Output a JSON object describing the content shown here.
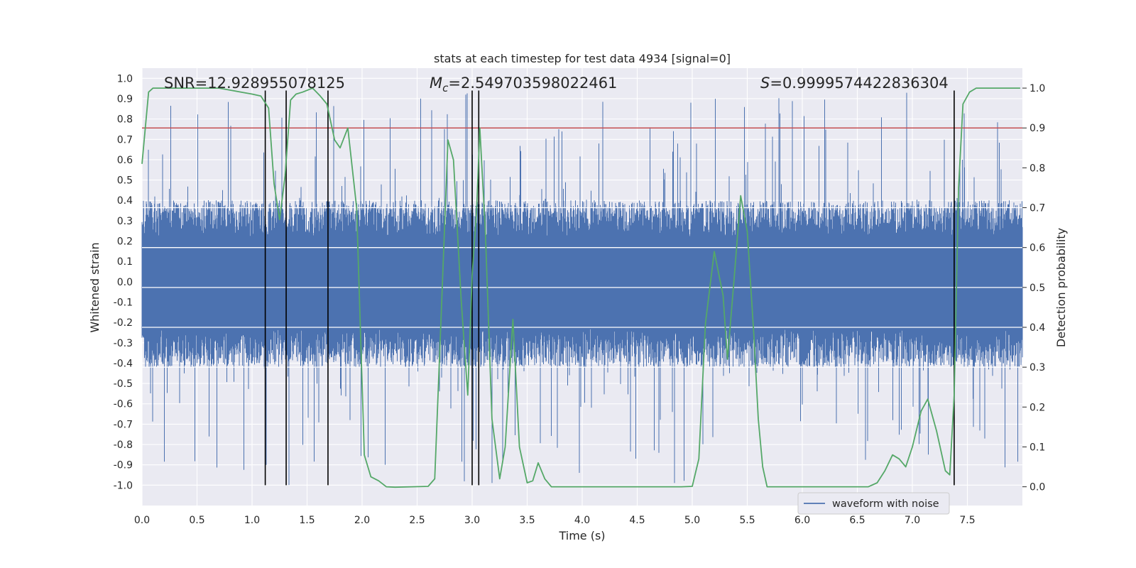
{
  "chart_data": {
    "type": "line",
    "title": "stats at each timestep for test data 4934 [signal=0]",
    "xlabel": "Time (s)",
    "ylabel": "Whitened strain",
    "y2label": "Detection probability",
    "xlim": [
      0.0,
      8.0
    ],
    "ylim": [
      -1.1,
      1.05
    ],
    "y2lim": [
      -0.047,
      1.05
    ],
    "xticks": [
      "0.0",
      "0.5",
      "1.0",
      "1.5",
      "2.0",
      "2.5",
      "3.0",
      "3.5",
      "4.0",
      "4.5",
      "5.0",
      "5.5",
      "6.0",
      "6.5",
      "7.0",
      "7.5"
    ],
    "yticks": [
      "1.0",
      "0.9",
      "0.8",
      "0.7",
      "0.6",
      "0.5",
      "0.4",
      "0.3",
      "0.2",
      "0.1",
      "0.0",
      "-0.1",
      "-0.2",
      "-0.3",
      "-0.4",
      "-0.5",
      "-0.6",
      "-0.7",
      "-0.8",
      "-0.9",
      "-1.0"
    ],
    "y2ticks": [
      "1.0",
      "0.9",
      "0.8",
      "0.7",
      "0.6",
      "0.5",
      "0.4",
      "0.3",
      "0.2",
      "0.1",
      "0.0"
    ],
    "grid": true,
    "legend": {
      "label": "waveform with noise",
      "location": "lower-right"
    },
    "annotations": {
      "snr": "SNR=12.928955078125",
      "mc_symbol": "M",
      "mc_sub": "c",
      "mc_value": "=2.549703598022461",
      "s_symbol": "S",
      "s_value": "=0.9999574422836304"
    },
    "threshold": {
      "value": 0.9,
      "axis": "y2",
      "color": "#c44e52"
    },
    "detection_lines_x": [
      1.12,
      1.31,
      1.69,
      3.0,
      3.06,
      7.38
    ],
    "detection_lines_range": [
      -1.0,
      0.94
    ],
    "waveform": {
      "name": "waveform with noise",
      "color": "#4c72b0",
      "x_range": [
        0.0,
        8.0
      ],
      "typical_envelope": [
        -0.42,
        0.4
      ],
      "peak_envelope": [
        -1.0,
        0.95
      ]
    },
    "probability": {
      "name": "detection probability",
      "color": "#55a868",
      "x": [
        0.0,
        0.06,
        0.1,
        0.18,
        0.3,
        0.5,
        0.7,
        0.9,
        1.0,
        1.08,
        1.15,
        1.2,
        1.25,
        1.3,
        1.35,
        1.4,
        1.46,
        1.55,
        1.62,
        1.68,
        1.75,
        1.8,
        1.87,
        1.95,
        2.02,
        2.08,
        2.15,
        2.22,
        2.3,
        2.45,
        2.6,
        2.66,
        2.72,
        2.78,
        2.83,
        2.9,
        2.96,
        3.0,
        3.04,
        3.07,
        3.12,
        3.18,
        3.25,
        3.3,
        3.37,
        3.43,
        3.5,
        3.55,
        3.6,
        3.66,
        3.72,
        3.9,
        4.2,
        4.5,
        4.9,
        5.0,
        5.06,
        5.12,
        5.2,
        5.28,
        5.32,
        5.38,
        5.44,
        5.5,
        5.56,
        5.6,
        5.64,
        5.68,
        5.8,
        6.0,
        6.2,
        6.4,
        6.6,
        6.68,
        6.75,
        6.82,
        6.88,
        6.94,
        7.0,
        7.08,
        7.14,
        7.22,
        7.3,
        7.34,
        7.38,
        7.42,
        7.46,
        7.52,
        7.58,
        7.7,
        7.98
      ],
      "y": [
        0.81,
        0.99,
        1.0,
        1.0,
        1.0,
        1.0,
        1.0,
        0.99,
        0.985,
        0.98,
        0.95,
        0.76,
        0.67,
        0.78,
        0.97,
        0.985,
        0.99,
        1.0,
        0.98,
        0.96,
        0.87,
        0.85,
        0.9,
        0.7,
        0.08,
        0.025,
        0.015,
        0.0,
        -0.001,
        0.0,
        0.001,
        0.02,
        0.44,
        0.87,
        0.82,
        0.47,
        0.23,
        0.53,
        0.69,
        0.9,
        0.64,
        0.17,
        0.02,
        0.1,
        0.42,
        0.1,
        0.01,
        0.015,
        0.06,
        0.02,
        0.0,
        0.0,
        0.0,
        0.0,
        0.0,
        0.001,
        0.07,
        0.41,
        0.59,
        0.48,
        0.32,
        0.52,
        0.73,
        0.64,
        0.38,
        0.17,
        0.05,
        0.0,
        0.0,
        0.0,
        0.0,
        0.0,
        0.0,
        0.01,
        0.04,
        0.08,
        0.07,
        0.05,
        0.1,
        0.19,
        0.22,
        0.14,
        0.04,
        0.03,
        0.23,
        0.75,
        0.96,
        0.99,
        1.0,
        1.0,
        1.0
      ]
    }
  }
}
